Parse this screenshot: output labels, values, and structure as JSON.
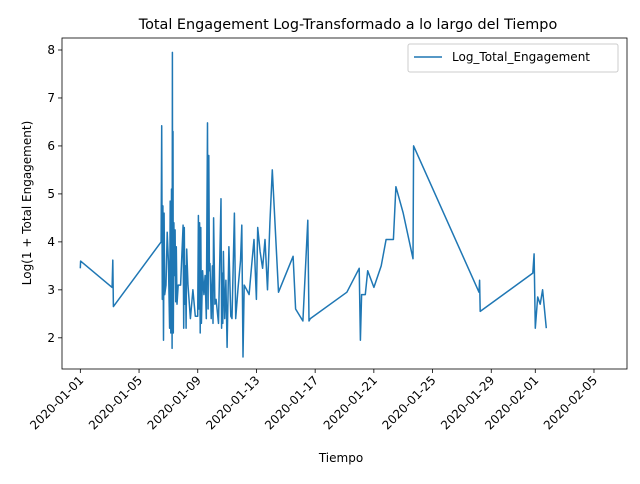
{
  "chart_data": {
    "type": "line",
    "title": "Total Engagement Log-Transformado a lo largo del Tiempo",
    "xlabel": "Tiempo",
    "ylabel": "Log(1 + Total Engagement)",
    "xlim": [
      "2019-12-30T18:00",
      "2020-02-07T06:00"
    ],
    "ylim": [
      1.35,
      8.25
    ],
    "x_ticks": [
      "2020-01-01",
      "2020-01-05",
      "2020-01-09",
      "2020-01-13",
      "2020-01-17",
      "2020-01-21",
      "2020-01-25",
      "2020-01-29",
      "2020-02-01",
      "2020-02-05"
    ],
    "y_ticks": [
      2,
      3,
      4,
      5,
      6,
      7,
      8
    ],
    "grid": false,
    "legend_position": "upper right",
    "line_color": "#1f77b4",
    "series": [
      {
        "name": "Log_Total_Engagement",
        "points": [
          [
            "2020-01-01T00:00",
            3.45
          ],
          [
            "2020-01-01T00:30",
            3.6
          ],
          [
            "2020-01-03T04:00",
            3.05
          ],
          [
            "2020-01-03T05:00",
            3.62
          ],
          [
            "2020-01-03T06:00",
            2.65
          ],
          [
            "2020-01-06T12:00",
            4.0
          ],
          [
            "2020-01-06T13:00",
            6.42
          ],
          [
            "2020-01-06T14:00",
            2.8
          ],
          [
            "2020-01-06T15:00",
            4.75
          ],
          [
            "2020-01-06T16:00",
            1.95
          ],
          [
            "2020-01-06T17:00",
            4.6
          ],
          [
            "2020-01-06T18:00",
            2.9
          ],
          [
            "2020-01-06T20:00",
            3.1
          ],
          [
            "2020-01-06T22:00",
            4.2
          ],
          [
            "2020-01-07T00:00",
            3.6
          ],
          [
            "2020-01-07T02:00",
            2.2
          ],
          [
            "2020-01-07T03:00",
            4.85
          ],
          [
            "2020-01-07T04:00",
            2.1
          ],
          [
            "2020-01-07T05:00",
            5.1
          ],
          [
            "2020-01-07T06:00",
            1.78
          ],
          [
            "2020-01-07T06:30",
            7.95
          ],
          [
            "2020-01-07T07:00",
            2.2
          ],
          [
            "2020-01-07T07:30",
            6.3
          ],
          [
            "2020-01-07T08:00",
            2.1
          ],
          [
            "2020-01-07T09:00",
            4.4
          ],
          [
            "2020-01-07T10:00",
            3.3
          ],
          [
            "2020-01-07T11:00",
            4.25
          ],
          [
            "2020-01-07T12:00",
            2.75
          ],
          [
            "2020-01-07T13:00",
            3.9
          ],
          [
            "2020-01-07T14:00",
            2.7
          ],
          [
            "2020-01-07T16:00",
            3.1
          ],
          [
            "2020-01-07T20:00",
            3.1
          ],
          [
            "2020-01-08T00:00",
            4.35
          ],
          [
            "2020-01-08T01:00",
            2.2
          ],
          [
            "2020-01-08T02:00",
            4.3
          ],
          [
            "2020-01-08T03:00",
            2.7
          ],
          [
            "2020-01-08T04:00",
            3.5
          ],
          [
            "2020-01-08T05:00",
            2.2
          ],
          [
            "2020-01-08T06:00",
            3.85
          ],
          [
            "2020-01-08T08:00",
            3.1
          ],
          [
            "2020-01-08T12:00",
            2.4
          ],
          [
            "2020-01-08T16:00",
            3.0
          ],
          [
            "2020-01-08T20:00",
            2.45
          ],
          [
            "2020-01-09T00:00",
            2.45
          ],
          [
            "2020-01-09T01:00",
            4.55
          ],
          [
            "2020-01-09T02:00",
            2.6
          ],
          [
            "2020-01-09T03:00",
            4.4
          ],
          [
            "2020-01-09T04:00",
            2.1
          ],
          [
            "2020-01-09T05:00",
            4.3
          ],
          [
            "2020-01-09T06:00",
            2.3
          ],
          [
            "2020-01-09T08:00",
            3.4
          ],
          [
            "2020-01-09T10:00",
            2.9
          ],
          [
            "2020-01-09T12:00",
            3.3
          ],
          [
            "2020-01-09T14:00",
            2.4
          ],
          [
            "2020-01-09T16:00",
            6.48
          ],
          [
            "2020-01-09T17:00",
            2.6
          ],
          [
            "2020-01-09T18:00",
            5.8
          ],
          [
            "2020-01-09T19:00",
            3.4
          ],
          [
            "2020-01-09T20:00",
            3.55
          ],
          [
            "2020-01-09T22:00",
            2.4
          ],
          [
            "2020-01-10T00:00",
            3.5
          ],
          [
            "2020-01-10T01:00",
            2.3
          ],
          [
            "2020-01-10T02:00",
            4.5
          ],
          [
            "2020-01-10T04:00",
            2.7
          ],
          [
            "2020-01-10T06:00",
            2.8
          ],
          [
            "2020-01-10T10:00",
            2.3
          ],
          [
            "2020-01-10T14:00",
            4.9
          ],
          [
            "2020-01-10T15:00",
            2.2
          ],
          [
            "2020-01-10T16:00",
            3.35
          ],
          [
            "2020-01-10T17:00",
            2.3
          ],
          [
            "2020-01-10T18:00",
            3.8
          ],
          [
            "2020-01-10T20:00",
            2.4
          ],
          [
            "2020-01-10T22:00",
            3.2
          ],
          [
            "2020-01-11T00:00",
            1.8
          ],
          [
            "2020-01-11T03:00",
            3.9
          ],
          [
            "2020-01-11T06:00",
            2.45
          ],
          [
            "2020-01-11T08:00",
            2.4
          ],
          [
            "2020-01-11T12:00",
            4.6
          ],
          [
            "2020-01-11T14:00",
            2.4
          ],
          [
            "2020-01-11T18:00",
            3.05
          ],
          [
            "2020-01-11T22:00",
            3.6
          ],
          [
            "2020-01-12T00:00",
            4.35
          ],
          [
            "2020-01-12T02:00",
            1.6
          ],
          [
            "2020-01-12T04:00",
            3.1
          ],
          [
            "2020-01-12T08:00",
            3.0
          ],
          [
            "2020-01-12T12:00",
            2.9
          ],
          [
            "2020-01-12T16:00",
            3.5
          ],
          [
            "2020-01-12T20:00",
            4.05
          ],
          [
            "2020-01-13T00:00",
            2.8
          ],
          [
            "2020-01-13T02:00",
            4.3
          ],
          [
            "2020-01-13T06:00",
            3.8
          ],
          [
            "2020-01-13T10:00",
            3.45
          ],
          [
            "2020-01-13T14:00",
            4.05
          ],
          [
            "2020-01-13T18:00",
            3.0
          ],
          [
            "2020-01-13T22:00",
            4.4
          ],
          [
            "2020-01-14T02:00",
            5.5
          ],
          [
            "2020-01-14T12:00",
            2.95
          ],
          [
            "2020-01-15T12:00",
            3.7
          ],
          [
            "2020-01-15T16:00",
            2.6
          ],
          [
            "2020-01-16T04:00",
            2.35
          ],
          [
            "2020-01-16T12:00",
            4.45
          ],
          [
            "2020-01-16T14:00",
            2.35
          ],
          [
            "2020-01-16T16:00",
            2.4
          ],
          [
            "2020-01-19T04:00",
            2.95
          ],
          [
            "2020-01-20T00:00",
            3.45
          ],
          [
            "2020-01-20T02:00",
            1.95
          ],
          [
            "2020-01-20T04:00",
            2.9
          ],
          [
            "2020-01-20T10:00",
            2.9
          ],
          [
            "2020-01-20T14:00",
            3.4
          ],
          [
            "2020-01-21T00:00",
            3.05
          ],
          [
            "2020-01-21T12:00",
            3.5
          ],
          [
            "2020-01-21T20:00",
            4.05
          ],
          [
            "2020-01-22T08:00",
            4.05
          ],
          [
            "2020-01-22T12:00",
            5.15
          ],
          [
            "2020-01-23T00:00",
            4.6
          ],
          [
            "2020-01-23T16:00",
            3.65
          ],
          [
            "2020-01-23T17:00",
            6.0
          ],
          [
            "2020-01-28T04:00",
            2.95
          ],
          [
            "2020-01-28T05:00",
            3.2
          ],
          [
            "2020-01-28T06:00",
            2.55
          ],
          [
            "2020-01-31T20:00",
            3.35
          ],
          [
            "2020-01-31T22:00",
            3.75
          ],
          [
            "2020-02-01T00:00",
            2.2
          ],
          [
            "2020-02-01T04:00",
            2.85
          ],
          [
            "2020-02-01T08:00",
            2.7
          ],
          [
            "2020-02-01T12:00",
            3.0
          ],
          [
            "2020-02-01T18:00",
            2.2
          ]
        ]
      }
    ]
  }
}
